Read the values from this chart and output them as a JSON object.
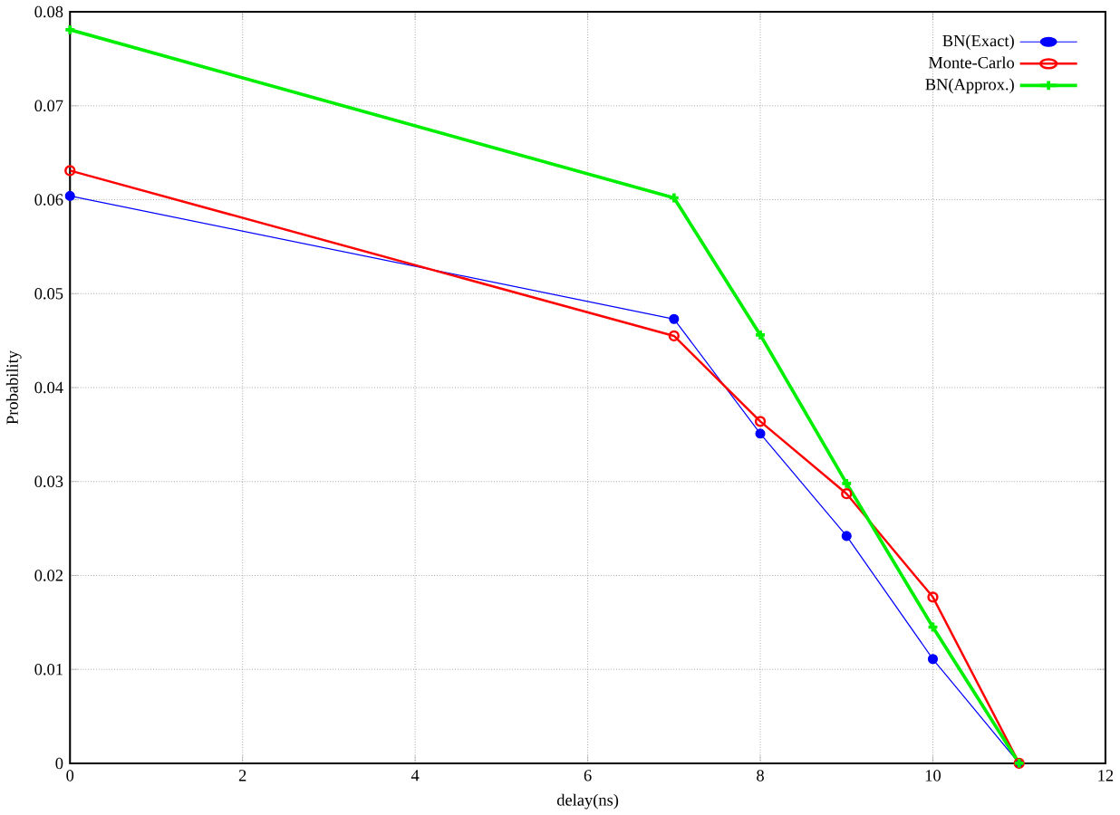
{
  "chart_data": {
    "type": "line",
    "xlabel": "delay(ns)",
    "ylabel": "Probability",
    "x": [
      0,
      7,
      8,
      9,
      10,
      11
    ],
    "series": [
      {
        "name": "BN(Exact)",
        "color": "#0000ff",
        "marker": "circle",
        "values": [
          0.0604,
          0.0473,
          0.0351,
          0.0242,
          0.0111,
          0
        ]
      },
      {
        "name": "Monte-Carlo",
        "color": "#ff0000",
        "marker": "circle-open",
        "values": [
          0.0631,
          0.0455,
          0.0364,
          0.0287,
          0.0177,
          0
        ]
      },
      {
        "name": "BN(Approx.)",
        "color": "#00ee00",
        "marker": "cross",
        "values": [
          0.0781,
          0.0602,
          0.0456,
          0.0298,
          0.0145,
          0
        ]
      }
    ],
    "xlim": [
      0,
      12
    ],
    "xticks": [
      0,
      2,
      4,
      6,
      8,
      10,
      12
    ],
    "ylim": [
      0,
      0.08
    ],
    "yticks": [
      0,
      0.01,
      0.02,
      0.03,
      0.04,
      0.05,
      0.06,
      0.07,
      0.08
    ],
    "grid": true,
    "legend": "top right",
    "line_style": "solid"
  }
}
